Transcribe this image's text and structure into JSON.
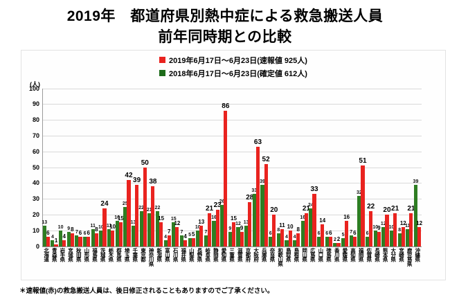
{
  "title": {
    "line1": "2019年　都道府県別熱中症による救急搬送人員",
    "line2": "前年同時期との比較"
  },
  "legend": {
    "items": [
      {
        "label": "2019年6月17日～6月23日(速報値  925人)",
        "color": "#e9231f"
      },
      {
        "label": "2018年6月17日～6月23日(確定値  612人)",
        "color": "#1d6b1a"
      }
    ]
  },
  "unit_label": "(人)",
  "footnote": "＊速報値(赤)の救急搬送人員は、後日修正されることもありますのでご了承ください。",
  "colors": {
    "red_2019": "#e9231f",
    "green_2018": "#2e7d22",
    "grid": "#d9d9d9"
  },
  "chart_data": {
    "type": "bar",
    "title": "2019年 都道府県別熱中症による救急搬送人員 前年同時期との比較",
    "xlabel": "都道府県",
    "ylabel": "人",
    "ylim": [
      0,
      100
    ],
    "ytick_step": 10,
    "grid": true,
    "legend_position": "top-center",
    "categories": [
      "北海道",
      "青森県",
      "岩手県",
      "宮城県",
      "秋田県",
      "山形県",
      "福島県",
      "茨城県",
      "栃木県",
      "群馬県",
      "埼玉県",
      "千葉県",
      "東京都",
      "神奈川県",
      "新潟県",
      "富山県",
      "石川県",
      "福井県",
      "山梨県",
      "長野県",
      "岐阜県",
      "静岡県",
      "愛知県",
      "三重県",
      "滋賀県",
      "京都府",
      "大阪府",
      "兵庫県",
      "奈良県",
      "和歌山県",
      "鳥取県",
      "島根県",
      "岡山県",
      "広島県",
      "山口県",
      "徳島県",
      "香川県",
      "愛媛県",
      "高知県",
      "福岡県",
      "佐賀県",
      "長崎県",
      "熊本県",
      "大分県",
      "宮崎県",
      "鹿児島県",
      "沖縄県"
    ],
    "series": [
      {
        "name": "2019年6月17日～6月23日(速報値 925人)",
        "color": "#e9231f",
        "total": 925,
        "values": [
          6,
          1,
          4,
          8,
          6,
          6,
          8,
          24,
          10,
          15,
          42,
          39,
          50,
          38,
          15,
          7,
          12,
          4,
          5,
          13,
          21,
          23,
          86,
          15,
          9,
          28,
          63,
          52,
          20,
          11,
          10,
          8,
          21,
          33,
          14,
          6,
          2,
          16,
          6,
          51,
          22,
          9,
          20,
          21,
          12,
          21,
          12
        ]
      },
      {
        "name": "2018年6月17日～6月23日(確定値 612人)",
        "color": "#2e7d22",
        "total": 612,
        "values": [
          13,
          4,
          10,
          9,
          7,
          6,
          11,
          10,
          11,
          16,
          25,
          13,
          22,
          21,
          22,
          4,
          15,
          7,
          5,
          10,
          7,
          16,
          26,
          9,
          12,
          13,
          33,
          39,
          6,
          8,
          4,
          4,
          16,
          24,
          6,
          6,
          2,
          5,
          7,
          32,
          6,
          10,
          12,
          10,
          8,
          11,
          39
        ]
      }
    ]
  }
}
